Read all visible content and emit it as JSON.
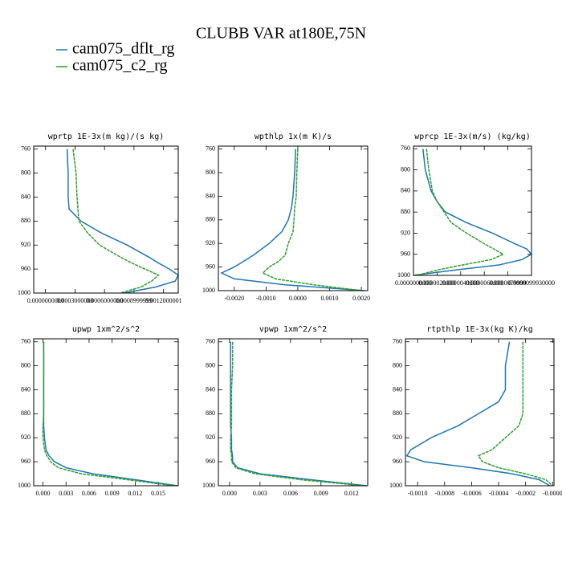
{
  "title": "CLUBB VAR at180E,75N",
  "legend": [
    {
      "name": "cam075_dflt_rg",
      "color": "#1f77b4"
    },
    {
      "name": "cam075_c2_rg",
      "color": "#2ca02c"
    }
  ],
  "chart_data": [
    {
      "type": "line",
      "title": "wprtp  1E-3x(m kg)/(s kg)",
      "y": [
        760,
        800,
        840,
        860,
        880,
        900,
        920,
        940,
        950,
        960,
        970,
        980,
        990,
        1000
      ],
      "ylim": [
        1000,
        755
      ],
      "yticks": [
        760,
        800,
        840,
        880,
        920,
        960,
        1000
      ],
      "xlim": [
        -0.00012,
        0.00135
      ],
      "xticks": [
        {
          "value": 0,
          "label": "0.0000000000"
        },
        {
          "value": 0.0003,
          "label": "0.0003000000"
        },
        {
          "value": 0.0006,
          "label": "0.0006000000"
        },
        {
          "value": 0.0009,
          "label": "0.0008999999"
        },
        {
          "value": 0.0012,
          "label": "0.0012000001"
        }
      ],
      "series": [
        {
          "color": "#1f77b4",
          "values": [
            0.00022,
            0.00023,
            0.00023,
            0.00024,
            0.00036,
            0.00057,
            0.00083,
            0.00105,
            0.00115,
            0.00126,
            0.00135,
            0.00132,
            0.00112,
            0.0008
          ]
        },
        {
          "color": "#2ca02c",
          "dashed": true,
          "values": [
            0.00028,
            0.00031,
            0.00032,
            0.00033,
            0.00034,
            0.00043,
            0.00055,
            0.00076,
            0.00088,
            0.00101,
            0.00115,
            0.00108,
            0.00097,
            0.00076
          ]
        }
      ]
    },
    {
      "type": "line",
      "title": "wpthlp  1x(m K)/s",
      "y": [
        760,
        800,
        840,
        860,
        880,
        900,
        920,
        940,
        950,
        960,
        970,
        980,
        990,
        1000
      ],
      "ylim": [
        1000,
        755
      ],
      "yticks": [
        760,
        800,
        840,
        880,
        920,
        960,
        1000
      ],
      "xlim": [
        -0.0025,
        0.0022
      ],
      "xticks": [
        {
          "value": -0.002,
          "label": "-0.0020"
        },
        {
          "value": -0.001,
          "label": "-0.0010"
        },
        {
          "value": 0,
          "label": "0.0000"
        },
        {
          "value": 0.001,
          "label": "0.0010"
        },
        {
          "value": 0.002,
          "label": "0.0020"
        }
      ],
      "series": [
        {
          "color": "#1f77b4",
          "values": [
            -7e-05,
            -0.0001,
            -0.00015,
            -0.0002,
            -0.0003,
            -0.0005,
            -0.0009,
            -0.0014,
            -0.0017,
            -0.002,
            -0.0024,
            -0.002,
            -0.0004,
            0.0021
          ]
        },
        {
          "color": "#2ca02c",
          "dashed": true,
          "values": [
            0,
            -3e-05,
            -5e-05,
            -0.0001,
            -0.00012,
            -0.00015,
            -0.0003,
            -0.0004,
            -0.0006,
            -0.0009,
            -0.0011,
            -0.0007,
            0.0005,
            0.002
          ]
        }
      ]
    },
    {
      "type": "line",
      "title": "wprcp  1E-3x(m/s) (kg/kg)",
      "y": [
        760,
        800,
        840,
        860,
        880,
        900,
        920,
        940,
        950,
        960,
        970,
        980,
        990,
        1000
      ],
      "ylim": [
        1000,
        755
      ],
      "yticks": [
        760,
        800,
        840,
        880,
        920,
        960,
        1000
      ],
      "xlim": [
        0,
        1e-05
      ],
      "xticks": [
        {
          "value": 0,
          "label": "0.0000000000"
        },
        {
          "value": 2e-06,
          "label": "0.0000020000"
        },
        {
          "value": 4e-06,
          "label": "0.0000040000"
        },
        {
          "value": 6e-06,
          "label": "0.0000060000"
        },
        {
          "value": 8e-06,
          "label": "0.0000079999"
        },
        {
          "value": 1e-05,
          "label": "0.0000099930000"
        }
      ],
      "series": [
        {
          "color": "#1f77b4",
          "values": [
            8e-07,
            1e-06,
            1.5e-06,
            2e-06,
            2.7e-06,
            4.5e-06,
            6.7e-06,
            8.6e-06,
            9.6e-06,
            1e-05,
            9.2e-06,
            7.3e-06,
            3.5e-06,
            0
          ]
        },
        {
          "color": "#2ca02c",
          "dashed": true,
          "values": [
            1.1e-06,
            1.3e-06,
            1.6e-06,
            2e-06,
            2.6e-06,
            3.2e-06,
            4.5e-06,
            6e-06,
            6.8e-06,
            7.6e-06,
            6.6e-06,
            4.2e-06,
            2e-06,
            3e-07
          ]
        }
      ]
    },
    {
      "type": "line",
      "title": "upwp  1xm^2/s^2",
      "y": [
        760,
        800,
        840,
        860,
        880,
        900,
        920,
        940,
        950,
        960,
        970,
        980,
        990,
        1000
      ],
      "ylim": [
        1000,
        755
      ],
      "yticks": [
        760,
        800,
        840,
        880,
        920,
        960,
        1000
      ],
      "xlim": [
        -0.0012,
        0.0176
      ],
      "xticks": [
        {
          "value": 0,
          "label": "0.000"
        },
        {
          "value": 0.003,
          "label": "0.003"
        },
        {
          "value": 0.006,
          "label": "0.006"
        },
        {
          "value": 0.009,
          "label": "0.009"
        },
        {
          "value": 0.012,
          "label": "0.012"
        },
        {
          "value": 0.015,
          "label": "0.015"
        }
      ],
      "series": [
        {
          "color": "#1f77b4",
          "values": [
            0.0001,
            0.0001,
            0.0001,
            0.0001,
            0.0001,
            0.0001,
            0.0002,
            0.0004,
            0.0008,
            0.0015,
            0.003,
            0.0065,
            0.012,
            0.0175
          ]
        },
        {
          "color": "#2ca02c",
          "dashed": true,
          "values": [
            0.0001,
            0.0001,
            0.0001,
            0.0001,
            0.0001,
            0,
            0,
            0.0002,
            0.0005,
            0.001,
            0.002,
            0.005,
            0.011,
            0.017
          ]
        }
      ]
    },
    {
      "type": "line",
      "title": "vpwp  1xm^2/s^2",
      "y": [
        760,
        800,
        840,
        860,
        880,
        900,
        920,
        940,
        950,
        960,
        970,
        980,
        990,
        1000
      ],
      "ylim": [
        1000,
        755
      ],
      "yticks": [
        760,
        800,
        840,
        880,
        920,
        960,
        1000
      ],
      "xlim": [
        -0.0011,
        0.0136
      ],
      "xticks": [
        {
          "value": 0,
          "label": "0.000"
        },
        {
          "value": 0.003,
          "label": "0.003"
        },
        {
          "value": 0.006,
          "label": "0.006"
        },
        {
          "value": 0.009,
          "label": "0.009"
        },
        {
          "value": 0.012,
          "label": "0.012"
        }
      ],
      "series": [
        {
          "color": "#1f77b4",
          "values": [
            0.0001,
            0.0001,
            0.0001,
            0.0001,
            0.0001,
            0.0001,
            0.0002,
            0.0002,
            0.0003,
            0.0003,
            0.0008,
            0.003,
            0.008,
            0.0135
          ]
        },
        {
          "color": "#2ca02c",
          "dashed": true,
          "values": [
            0.0003,
            0.0003,
            0.0002,
            0.0002,
            0.0002,
            0.0002,
            0.0001,
            0.0001,
            0.0002,
            0.0002,
            0.0006,
            0.0025,
            0.007,
            0.0132
          ]
        }
      ]
    },
    {
      "type": "line",
      "title": "rtpthlp  1E-3x(kg K)/kg",
      "y": [
        760,
        800,
        840,
        860,
        880,
        900,
        920,
        940,
        950,
        960,
        970,
        980,
        990,
        1000
      ],
      "ylim": [
        1000,
        755
      ],
      "yticks": [
        760,
        800,
        840,
        880,
        920,
        960,
        1000
      ],
      "xlim": [
        -0.00109,
        1e-05
      ],
      "xticks": [
        {
          "value": -0.001,
          "label": "-0.0010"
        },
        {
          "value": -0.0008,
          "label": "-0.0008"
        },
        {
          "value": -0.0006,
          "label": "-0.0006"
        },
        {
          "value": -0.0004,
          "label": "-0.0004"
        },
        {
          "value": -0.0002,
          "label": "-0.0002"
        },
        {
          "value": 0,
          "label": "-0.0000"
        }
      ],
      "series": [
        {
          "color": "#1f77b4",
          "values": [
            -0.00032,
            -0.00035,
            -0.00035,
            -0.0004,
            -0.00055,
            -0.0007,
            -0.0009,
            -0.00105,
            -0.00108,
            -0.00095,
            -0.0006,
            -0.0003,
            -0.0001,
            -2e-05
          ]
        },
        {
          "color": "#2ca02c",
          "dashed": true,
          "values": [
            -0.00022,
            -0.00022,
            -0.00022,
            -0.00022,
            -0.00022,
            -0.00025,
            -0.00035,
            -0.00045,
            -0.00055,
            -0.00052,
            -0.0004,
            -0.0002,
            -5e-05,
            0
          ]
        }
      ]
    }
  ]
}
